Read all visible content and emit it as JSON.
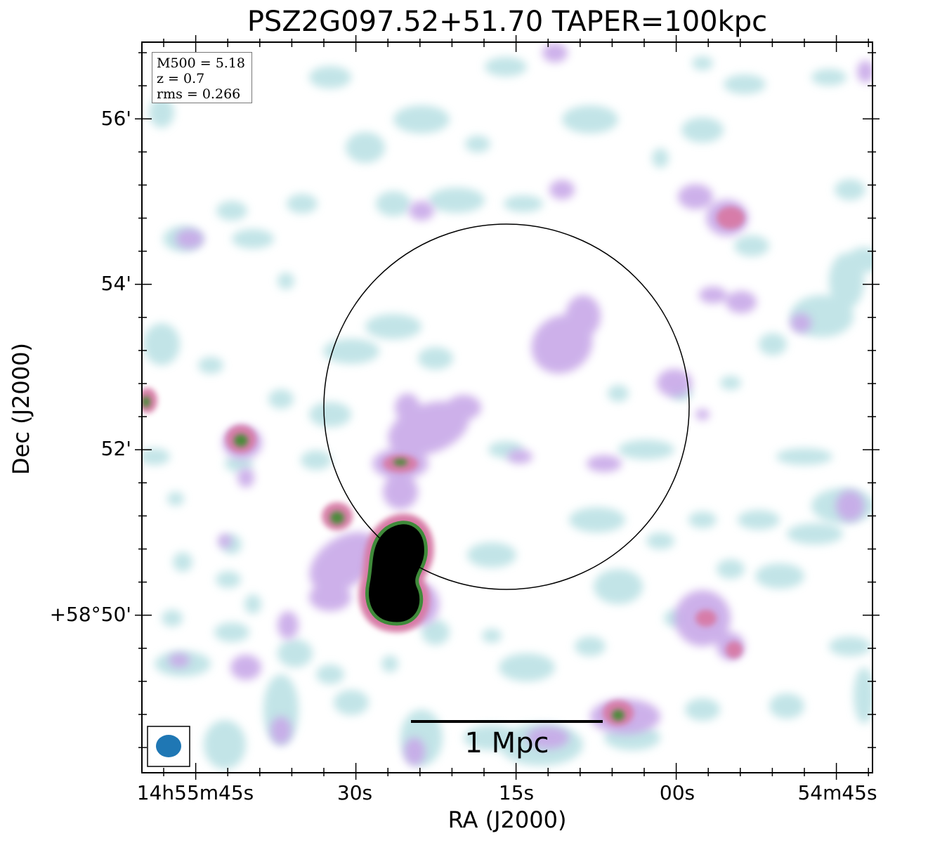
{
  "title": "PSZ2G097.52+51.70 TAPER=100kpc",
  "axes": {
    "xlabel": "RA (J2000)",
    "ylabel": "Dec (J2000)",
    "x_ticks": [
      "14h55m45s",
      "30s",
      "15s",
      "00s",
      "54m45s"
    ],
    "y_ticks": [
      "56'",
      "54'",
      "52'",
      "+58°50'"
    ]
  },
  "info": {
    "m500": "M500 = 5.18",
    "z": "z = 0.7",
    "rms": "rms = 0.266"
  },
  "scale_bar": {
    "label": "1 Mpc"
  },
  "colors": {
    "beam": "#1f77b4",
    "emission_faint": "#bfe3e6",
    "emission_mid": "#c8a8e8",
    "emission_bright": "#d77aa6",
    "emission_peak": "#4c8a3a",
    "core": "#000000"
  },
  "icons": {
    "beam": "beam-ellipse-icon"
  }
}
